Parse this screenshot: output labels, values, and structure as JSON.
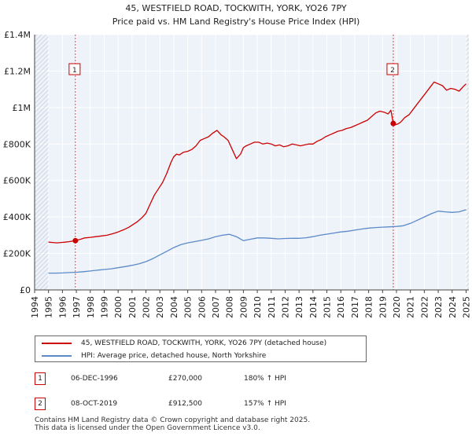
{
  "chart_data": {
    "type": "line",
    "title": "45, WESTFIELD ROAD, TOCKWITH, YORK, YO26 7PY",
    "subtitle": "Price paid vs. HM Land Registry's House Price Index (HPI)",
    "xlabel": "",
    "ylabel": "",
    "xlim": [
      1994,
      2025.2
    ],
    "ylim": [
      0,
      1400000
    ],
    "x_ticks": [
      1994,
      1995,
      1996,
      1997,
      1998,
      1999,
      2000,
      2001,
      2002,
      2003,
      2004,
      2005,
      2006,
      2007,
      2008,
      2009,
      2010,
      2011,
      2012,
      2013,
      2014,
      2015,
      2016,
      2017,
      2018,
      2019,
      2020,
      2021,
      2022,
      2023,
      2024,
      2025
    ],
    "x_tick_labels": [
      "1994",
      "1995",
      "1996",
      "1997",
      "1998",
      "1999",
      "2000",
      "2001",
      "2002",
      "2003",
      "2004",
      "2005",
      "2006",
      "2007",
      "2008",
      "2009",
      "2010",
      "2011",
      "2012",
      "2013",
      "2014",
      "2015",
      "2016",
      "2017",
      "2018",
      "2019",
      "2020",
      "2021",
      "2022",
      "2023",
      "2024",
      "2025"
    ],
    "y_ticks": [
      0,
      200000,
      400000,
      600000,
      800000,
      1000000,
      1200000,
      1400000
    ],
    "y_tick_labels": [
      "£0",
      "£200K",
      "£400K",
      "£600K",
      "£800K",
      "£1M",
      "£1.2M",
      "£1.4M"
    ],
    "grid": true,
    "legend_position": "bottom",
    "series": [
      {
        "name": "45, WESTFIELD ROAD, TOCKWITH, YORK, YO26 7PY (detached house)",
        "color": "#cc0000",
        "x": [
          1995.0,
          1995.3,
          1995.6,
          1995.9,
          1996.2,
          1996.5,
          1996.93,
          1997.3,
          1997.6,
          1998.0,
          1998.4,
          1998.8,
          1999.2,
          1999.6,
          2000.0,
          2000.4,
          2000.8,
          2001.1,
          2001.4,
          2001.7,
          2002.0,
          2002.3,
          2002.6,
          2002.9,
          2003.2,
          2003.5,
          2003.8,
          2004.0,
          2004.2,
          2004.4,
          2004.7,
          2005.0,
          2005.3,
          2005.6,
          2005.9,
          2006.2,
          2006.5,
          2006.8,
          2007.1,
          2007.4,
          2007.6,
          2007.9,
          2008.2,
          2008.5,
          2008.8,
          2009.0,
          2009.2,
          2009.5,
          2009.8,
          2010.1,
          2010.4,
          2010.7,
          2011.0,
          2011.3,
          2011.6,
          2011.9,
          2012.2,
          2012.5,
          2012.8,
          2013.1,
          2013.4,
          2013.7,
          2014.0,
          2014.3,
          2014.6,
          2014.9,
          2015.2,
          2015.5,
          2015.8,
          2016.1,
          2016.4,
          2016.7,
          2017.0,
          2017.3,
          2017.6,
          2017.9,
          2018.2,
          2018.5,
          2018.8,
          2019.1,
          2019.4,
          2019.6,
          2019.77,
          2019.9,
          2020.1,
          2020.3,
          2020.6,
          2020.9,
          2021.2,
          2021.5,
          2021.8,
          2022.1,
          2022.4,
          2022.7,
          2023.0,
          2023.3,
          2023.6,
          2023.9,
          2024.2,
          2024.5,
          2024.8,
          2025.0
        ],
        "y": [
          262000,
          260000,
          258000,
          260000,
          262000,
          265000,
          270000,
          278000,
          285000,
          288000,
          292000,
          296000,
          300000,
          308000,
          318000,
          330000,
          345000,
          360000,
          375000,
          395000,
          420000,
          470000,
          520000,
          555000,
          590000,
          640000,
          700000,
          730000,
          745000,
          740000,
          755000,
          760000,
          770000,
          790000,
          820000,
          830000,
          840000,
          860000,
          875000,
          850000,
          840000,
          820000,
          770000,
          720000,
          745000,
          780000,
          790000,
          800000,
          810000,
          810000,
          800000,
          805000,
          800000,
          790000,
          795000,
          785000,
          790000,
          800000,
          795000,
          790000,
          795000,
          800000,
          800000,
          815000,
          825000,
          840000,
          850000,
          860000,
          870000,
          875000,
          885000,
          890000,
          900000,
          910000,
          920000,
          930000,
          950000,
          970000,
          980000,
          975000,
          965000,
          985000,
          912500,
          905000,
          910000,
          920000,
          945000,
          960000,
          990000,
          1020000,
          1050000,
          1080000,
          1110000,
          1140000,
          1130000,
          1120000,
          1095000,
          1105000,
          1100000,
          1090000,
          1115000,
          1130000
        ]
      },
      {
        "name": "HPI: Average price, detached house, North Yorkshire",
        "color": "#5b8ac9",
        "x": [
          1995.0,
          1995.5,
          1996.0,
          1996.5,
          1997.0,
          1997.5,
          1998.0,
          1998.5,
          1999.0,
          1999.5,
          2000.0,
          2000.5,
          2001.0,
          2001.5,
          2002.0,
          2002.5,
          2003.0,
          2003.5,
          2004.0,
          2004.5,
          2005.0,
          2005.5,
          2006.0,
          2006.5,
          2007.0,
          2007.5,
          2008.0,
          2008.5,
          2009.0,
          2009.5,
          2010.0,
          2010.5,
          2011.0,
          2011.5,
          2012.0,
          2012.5,
          2013.0,
          2013.5,
          2014.0,
          2014.5,
          2015.0,
          2015.5,
          2016.0,
          2016.5,
          2017.0,
          2017.5,
          2018.0,
          2018.5,
          2019.0,
          2019.5,
          2020.0,
          2020.5,
          2021.0,
          2021.5,
          2022.0,
          2022.5,
          2023.0,
          2023.5,
          2024.0,
          2024.5,
          2025.0
        ],
        "y": [
          92000,
          92000,
          93000,
          95000,
          97000,
          100000,
          104000,
          108000,
          112000,
          116000,
          122000,
          128000,
          135000,
          143000,
          155000,
          172000,
          192000,
          212000,
          232000,
          248000,
          258000,
          265000,
          272000,
          280000,
          292000,
          300000,
          305000,
          292000,
          270000,
          278000,
          285000,
          285000,
          283000,
          280000,
          282000,
          283000,
          283000,
          286000,
          292000,
          300000,
          306000,
          312000,
          318000,
          322000,
          328000,
          334000,
          339000,
          342000,
          344000,
          346000,
          348000,
          352000,
          365000,
          382000,
          400000,
          418000,
          432000,
          428000,
          425000,
          428000,
          440000
        ]
      }
    ],
    "markers": [
      {
        "label": "1",
        "x": 1996.93,
        "y": 270000
      },
      {
        "label": "2",
        "x": 2019.77,
        "y": 912500
      }
    ]
  },
  "legend": {
    "entries": [
      {
        "label": "45, WESTFIELD ROAD, TOCKWITH, YORK, YO26 7PY (detached house)",
        "color": "#cc0000"
      },
      {
        "label": "HPI: Average price, detached house, North Yorkshire",
        "color": "#5b8ac9"
      }
    ]
  },
  "transactions": [
    {
      "marker": "1",
      "date": "06-DEC-1996",
      "price": "£270,000",
      "hpi": "180% ↑ HPI"
    },
    {
      "marker": "2",
      "date": "08-OCT-2019",
      "price": "£912,500",
      "hpi": "157% ↑ HPI"
    }
  ],
  "footer": {
    "line1": "Contains HM Land Registry data © Crown copyright and database right 2025.",
    "line2": "This data is licensed under the Open Government Licence v3.0."
  }
}
